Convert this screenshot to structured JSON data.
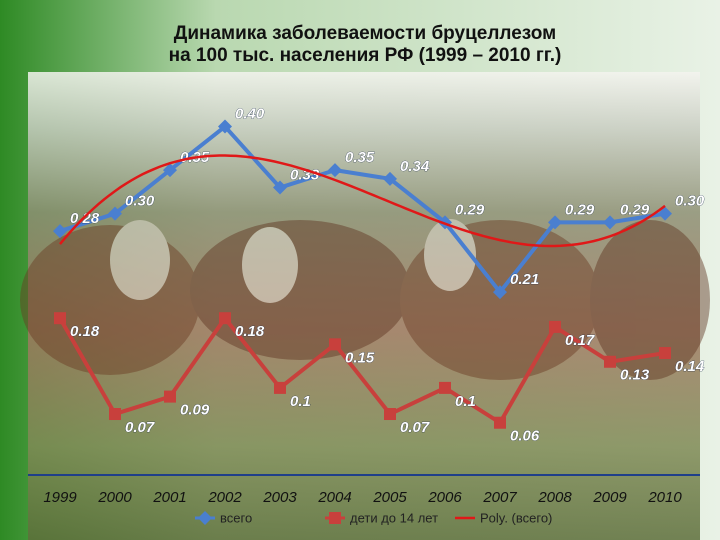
{
  "chart_data": {
    "type": "line",
    "title": [
      "Динамика заболеваемости бруцеллезом",
      "на 100 тыс. населения РФ (1999 – 2010 гг.)"
    ],
    "categories": [
      "1999",
      "2000",
      "2001",
      "2002",
      "2003",
      "2004",
      "2005",
      "2006",
      "2007",
      "2008",
      "2009",
      "2010"
    ],
    "series": [
      {
        "name": "всего",
        "color": "#4a7fd0",
        "marker": "diamond",
        "values": [
          0.28,
          0.3,
          0.35,
          0.4,
          0.33,
          0.35,
          0.34,
          0.29,
          0.21,
          0.29,
          0.29,
          0.3
        ],
        "value_labels": [
          "0.28",
          "0.30",
          "0.35",
          "0.40",
          "0.33",
          "0.35",
          "0.34",
          "0.29",
          "0.21",
          "0.29",
          "0.29",
          "0.30"
        ]
      },
      {
        "name": "дети до 14 лет",
        "color": "#c8403c",
        "marker": "square",
        "values": [
          0.18,
          0.07,
          0.09,
          0.18,
          0.1,
          0.15,
          0.07,
          0.1,
          0.06,
          0.17,
          0.13,
          0.14
        ]
      }
    ],
    "trendline": {
      "name": "Poly. (всего)",
      "series": 0,
      "degree": 3,
      "color": "#e01818"
    },
    "ylim": [
      0,
      0.45
    ]
  }
}
